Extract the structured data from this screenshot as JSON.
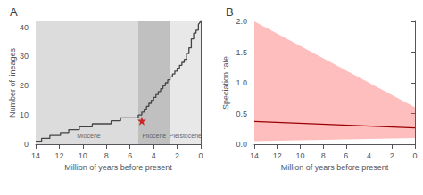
{
  "chart_data": [
    {
      "type": "line",
      "title": "A",
      "xlabel": "Million of years before present",
      "ylabel": "Number of lineages",
      "x": [
        14.0,
        13.5,
        13.5,
        12.8,
        12.8,
        11.9,
        11.9,
        11.2,
        11.2,
        10.8,
        10.8,
        10.3,
        10.3,
        9.7,
        9.7,
        9.2,
        9.2,
        8.6,
        8.6,
        8.1,
        8.1,
        7.6,
        7.6,
        7.1,
        7.1,
        6.8,
        6.8,
        6.5,
        6.5,
        6.2,
        6.2,
        5.9,
        5.9,
        5.6,
        5.6,
        5.3,
        5.3,
        5.0,
        5.0,
        4.8,
        4.8,
        4.6,
        4.6,
        4.4,
        4.4,
        4.2,
        4.2,
        4.0,
        4.0,
        3.8,
        3.8,
        3.6,
        3.6,
        3.4,
        3.4,
        3.2,
        3.2,
        3.0,
        3.0,
        2.8,
        2.8,
        2.6,
        2.6,
        2.4,
        2.4,
        2.2,
        2.2,
        2.0,
        2.0,
        1.8,
        1.8,
        1.6,
        1.6,
        1.4,
        1.4,
        1.2,
        1.2,
        1.0,
        1.0,
        0.8,
        0.8,
        0.6,
        0.6,
        0.4,
        0.4,
        0.2,
        0.2,
        0.0
      ],
      "values": [
        1,
        1,
        2,
        2,
        3,
        3,
        4,
        4,
        5,
        5,
        5,
        5,
        6,
        6,
        6,
        6,
        7,
        7,
        7,
        7,
        7,
        7,
        8,
        8,
        8,
        8,
        9,
        9,
        9,
        9,
        9,
        9,
        9,
        9,
        9,
        9,
        10,
        10,
        11,
        11,
        12,
        12,
        13,
        13,
        14,
        14,
        15,
        15,
        16,
        16,
        17,
        17,
        18,
        18,
        19,
        19,
        20,
        20,
        21,
        21,
        22,
        22,
        23,
        23,
        24,
        24,
        25,
        25,
        26,
        26,
        27,
        27,
        28,
        28,
        29,
        29,
        31,
        31,
        33,
        33,
        36,
        36,
        38,
        38,
        39,
        39,
        41,
        42
      ],
      "color": "#444444",
      "points": [
        {
          "x": 5.0,
          "y": 8,
          "color": "#cc0000",
          "marker": "star"
        }
      ],
      "regions": [
        {
          "range": [
            14,
            5.3
          ],
          "color": "#dcdcdc"
        },
        {
          "range": [
            5.3,
            2.6
          ],
          "color": "#c0c0c0"
        },
        {
          "range": [
            2.6,
            0
          ],
          "color": "#e8e8e8"
        }
      ],
      "annotations": [
        {
          "text": "Miocene",
          "x": 9.5,
          "y": 1.5
        },
        {
          "text": "Pliocene",
          "x": 3.95,
          "y": 1.5
        },
        {
          "text": "Pleistocene",
          "x": 1.3,
          "y": 1.5
        }
      ],
      "xlim": [
        14,
        0
      ],
      "xticks": [
        14,
        12,
        10,
        8,
        6,
        4,
        2,
        0
      ],
      "ylim": [
        0,
        42
      ],
      "yticks": [
        0,
        10,
        20,
        30,
        40
      ],
      "grid": false
    },
    {
      "type": "line",
      "title": "B",
      "xlabel": "Million of years before present",
      "ylabel": "Speciation rate",
      "x": [
        14,
        0
      ],
      "values": [
        0.37,
        0.265
      ],
      "color": "#990000",
      "band": {
        "upper": [
          2.0,
          0.6
        ],
        "lower": [
          0.05,
          0.1
        ],
        "color": "#ff4444"
      },
      "xlim": [
        14,
        0
      ],
      "xticks": [
        14,
        12,
        10,
        8,
        6,
        4,
        2,
        0
      ],
      "ylim": [
        0,
        2.0
      ],
      "yticks": [
        {
          "value": 0.0,
          "label": "0.0"
        },
        0.5,
        {
          "value": 1.0,
          "label": "1.0"
        },
        1.5,
        {
          "value": 2.0,
          "label": "2.0"
        }
      ],
      "grid": false
    }
  ]
}
